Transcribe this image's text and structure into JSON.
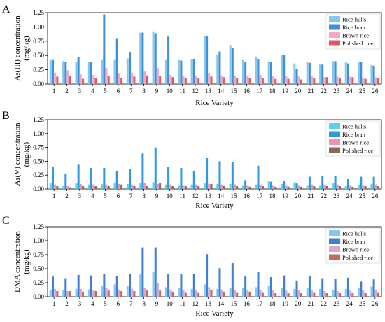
{
  "figure": {
    "x_label": "Rice Variety"
  },
  "chart_data": [
    {
      "type": "bar",
      "panel_label": "A",
      "ylabel": "As(III) concentration (mg/kg)",
      "ylabel_lines": [
        "As(III) concentration",
        "(mg/kg)"
      ],
      "xlabel": "Rice Variety",
      "ylim": [
        0,
        1.25
      ],
      "yticks": [
        "0.00",
        "0.25",
        "0.50",
        "0.75",
        "1.00",
        "1.25"
      ],
      "categories": [
        "1",
        "2",
        "3",
        "4",
        "5",
        "6",
        "7",
        "8",
        "9",
        "10",
        "11",
        "12",
        "13",
        "14",
        "15",
        "16",
        "17",
        "18",
        "19",
        "20",
        "21",
        "22",
        "23",
        "24",
        "25",
        "26"
      ],
      "legend": "top-right",
      "grid": false,
      "series": [
        {
          "name": "Rice hulls",
          "color": "#86c8ea",
          "values": [
            0.42,
            0.4,
            0.39,
            0.39,
            0.42,
            0.42,
            0.45,
            0.9,
            0.91,
            0.42,
            0.42,
            0.43,
            0.85,
            0.52,
            0.67,
            0.42,
            0.48,
            0.4,
            0.51,
            0.36,
            0.38,
            0.35,
            0.4,
            0.38,
            0.39,
            0.33
          ]
        },
        {
          "name": "Rice bran",
          "color": "#3f8fdb",
          "values": [
            0.42,
            0.39,
            0.47,
            0.39,
            1.22,
            0.79,
            0.55,
            0.9,
            0.89,
            0.83,
            0.41,
            0.43,
            0.84,
            0.57,
            0.63,
            0.38,
            0.44,
            0.38,
            0.51,
            0.26,
            0.37,
            0.34,
            0.4,
            0.36,
            0.38,
            0.32
          ]
        },
        {
          "name": "Brown rice",
          "color": "#f3a9c0",
          "values": [
            0.2,
            0.24,
            0.17,
            0.16,
            0.28,
            0.18,
            0.2,
            0.22,
            0.28,
            0.16,
            0.14,
            0.14,
            0.18,
            0.15,
            0.15,
            0.15,
            0.16,
            0.14,
            0.14,
            0.13,
            0.14,
            0.12,
            0.13,
            0.13,
            0.11,
            0.12
          ]
        },
        {
          "name": "Polished rice",
          "color": "#e0595d",
          "values": [
            0.13,
            0.14,
            0.09,
            0.1,
            0.14,
            0.11,
            0.13,
            0.15,
            0.14,
            0.12,
            0.1,
            0.1,
            0.13,
            0.12,
            0.11,
            0.1,
            0.1,
            0.09,
            0.09,
            0.08,
            0.1,
            0.12,
            0.1,
            0.12,
            0.09,
            0.1
          ]
        }
      ]
    },
    {
      "type": "bar",
      "panel_label": "B",
      "ylabel": "As(V) concentration (mg/kg)",
      "ylabel_lines": [
        "As(V) concentration",
        "(mg/kg)"
      ],
      "xlabel": "Rice Variety",
      "ylim": [
        0,
        1.25
      ],
      "yticks": [
        "0.00",
        "0.25",
        "0.50",
        "0.75",
        "1.00",
        "1.25"
      ],
      "categories": [
        "1",
        "2",
        "3",
        "4",
        "5",
        "6",
        "7",
        "8",
        "9",
        "10",
        "11",
        "12",
        "13",
        "14",
        "15",
        "16",
        "17",
        "18",
        "19",
        "20",
        "21",
        "22",
        "23",
        "24",
        "25",
        "26"
      ],
      "legend": "top-right",
      "grid": false,
      "series": [
        {
          "name": "Rice hulls",
          "color": "#5ad2e6",
          "values": [
            0.1,
            0.05,
            0.1,
            0.08,
            0.09,
            0.1,
            0.09,
            0.1,
            0.12,
            0.08,
            0.07,
            0.08,
            0.1,
            0.09,
            0.09,
            0.07,
            0.08,
            0.15,
            0.09,
            0.12,
            0.07,
            0.07,
            0.1,
            0.06,
            0.08,
            0.09
          ]
        },
        {
          "name": "Rice bran",
          "color": "#2f98e0",
          "values": [
            0.4,
            0.28,
            0.45,
            0.38,
            0.38,
            0.33,
            0.36,
            0.64,
            0.75,
            0.4,
            0.38,
            0.33,
            0.56,
            0.5,
            0.49,
            0.16,
            0.42,
            0.13,
            0.14,
            0.1,
            0.22,
            0.24,
            0.23,
            0.18,
            0.22,
            0.22
          ]
        },
        {
          "name": "Brown rice",
          "color": "#ef8fbc",
          "values": [
            0.08,
            0.06,
            0.09,
            0.08,
            0.08,
            0.09,
            0.08,
            0.1,
            0.09,
            0.08,
            0.07,
            0.08,
            0.09,
            0.08,
            0.08,
            0.07,
            0.08,
            0.07,
            0.07,
            0.07,
            0.08,
            0.08,
            0.08,
            0.07,
            0.07,
            0.08
          ]
        },
        {
          "name": "Polished rice",
          "color": "#8b6a52",
          "values": [
            0.05,
            0.03,
            0.05,
            0.05,
            0.06,
            0.08,
            0.06,
            0.05,
            0.1,
            0.06,
            0.05,
            0.05,
            0.09,
            0.06,
            0.06,
            0.04,
            0.05,
            0.04,
            0.04,
            0.04,
            0.05,
            0.06,
            0.05,
            0.04,
            0.05,
            0.05
          ]
        }
      ]
    },
    {
      "type": "bar",
      "panel_label": "C",
      "ylabel": "DMA concentration (mg/kg)",
      "ylabel_lines": [
        "DMA concentration",
        "(mg/kg)"
      ],
      "xlabel": "Rice Variety",
      "ylim": [
        0,
        1.25
      ],
      "yticks": [
        "0.00",
        "0.25",
        "0.50",
        "0.75",
        "1.00",
        "1.25"
      ],
      "categories": [
        "1",
        "2",
        "3",
        "4",
        "5",
        "6",
        "7",
        "8",
        "9",
        "10",
        "11",
        "12",
        "13",
        "14",
        "15",
        "16",
        "17",
        "18",
        "19",
        "20",
        "21",
        "22",
        "23",
        "24",
        "25",
        "26"
      ],
      "legend": "top-right",
      "grid": false,
      "series": [
        {
          "name": "Rice hulls",
          "color": "#86c8ea",
          "values": [
            0.12,
            0.11,
            0.14,
            0.13,
            0.2,
            0.22,
            0.2,
            0.4,
            0.45,
            0.17,
            0.15,
            0.14,
            0.22,
            0.14,
            0.16,
            0.15,
            0.17,
            0.19,
            0.16,
            0.14,
            0.16,
            0.14,
            0.12,
            0.14,
            0.16,
            0.18
          ]
        },
        {
          "name": "Rice bran",
          "color": "#3f80d6",
          "values": [
            0.36,
            0.33,
            0.39,
            0.38,
            0.4,
            0.37,
            0.41,
            0.88,
            0.88,
            0.41,
            0.41,
            0.41,
            0.76,
            0.51,
            0.6,
            0.36,
            0.44,
            0.35,
            0.38,
            0.29,
            0.37,
            0.33,
            0.32,
            0.34,
            0.27,
            0.31
          ]
        },
        {
          "name": "Brown rice",
          "color": "#d9a7cf",
          "values": [
            0.14,
            0.1,
            0.14,
            0.12,
            0.15,
            0.13,
            0.14,
            0.16,
            0.25,
            0.13,
            0.12,
            0.12,
            0.17,
            0.13,
            0.12,
            0.12,
            0.12,
            0.11,
            0.11,
            0.11,
            0.12,
            0.1,
            0.1,
            0.11,
            0.11,
            0.12
          ]
        },
        {
          "name": "Polished rice",
          "color": "#c46b5b",
          "values": [
            0.1,
            0.1,
            0.09,
            0.1,
            0.11,
            0.1,
            0.1,
            0.11,
            0.11,
            0.09,
            0.08,
            0.08,
            0.12,
            0.09,
            0.08,
            0.09,
            0.08,
            0.07,
            0.07,
            0.07,
            0.08,
            0.07,
            0.07,
            0.07,
            0.07,
            0.08
          ]
        }
      ]
    }
  ]
}
